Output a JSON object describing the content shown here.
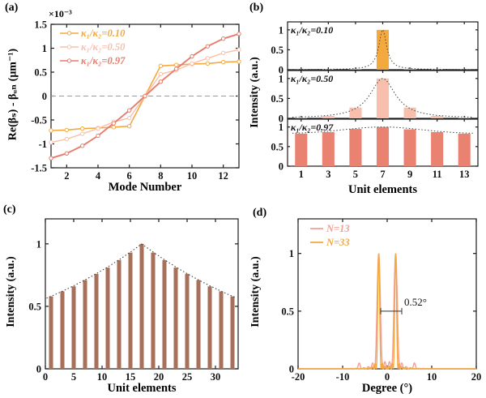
{
  "chart_data": [
    {
      "panel": "(a)",
      "type": "line",
      "xlabel": "Mode Number",
      "ylabel": "Re(βₛ) - βᵤₙ (μm⁻¹)",
      "offset_label": "×10⁻³",
      "xlim": [
        1,
        13
      ],
      "ylim": [
        -1.5,
        1.5
      ],
      "xticks": [
        2,
        4,
        6,
        8,
        10,
        12
      ],
      "yticks": [
        -1.5,
        -1,
        -0.5,
        0,
        0.5,
        1,
        1.5
      ],
      "zero_line": true,
      "legend_position": "top-left",
      "x": [
        1,
        2,
        3,
        4,
        5,
        6,
        7,
        8,
        9,
        10,
        11,
        12,
        13
      ],
      "series": [
        {
          "name": "κ₁/κ₂=0.10",
          "color": "#f4a93e",
          "width": 1.6,
          "values": [
            -0.72,
            -0.71,
            -0.68,
            -0.67,
            -0.65,
            -0.63,
            0,
            0.63,
            0.65,
            0.67,
            0.68,
            0.71,
            0.72
          ]
        },
        {
          "name": "κ₁/κ₂=0.50",
          "color": "#f8c0ac",
          "width": 1.4,
          "values": [
            -0.97,
            -0.9,
            -0.79,
            -0.68,
            -0.54,
            -0.46,
            0,
            0.46,
            0.54,
            0.68,
            0.79,
            0.9,
            0.97
          ]
        },
        {
          "name": "κ₁/κ₂=0.97",
          "color": "#e87c6c",
          "width": 1.9,
          "values": [
            -1.3,
            -1.2,
            -1.04,
            -0.83,
            -0.57,
            -0.3,
            0,
            0.3,
            0.57,
            0.83,
            1.04,
            1.2,
            1.3
          ]
        }
      ]
    },
    {
      "panel": "(b)",
      "type": "bar-stack",
      "xlabel": "Unit elements",
      "ylabel": "Intensity (a.u.)",
      "categories": [
        1,
        3,
        5,
        7,
        9,
        11,
        13
      ],
      "xticks": [
        1,
        3,
        5,
        7,
        9,
        11,
        13
      ],
      "yticks": [
        0,
        0.5,
        1
      ],
      "xlim": [
        0,
        14
      ],
      "ylim": [
        0,
        1.2
      ],
      "bar_width_units": 0.9,
      "subplots": [
        {
          "label": "κ₁/κ₂=0.10",
          "color": "#f4a93e",
          "values": [
            0.005,
            0.01,
            0.02,
            1.0,
            0.02,
            0.01,
            0.005
          ],
          "envelope": {
            "type": "lorentzian",
            "center": 7,
            "gamma": 0.35,
            "base": 0.004,
            "amp": 1
          }
        },
        {
          "label": "κ₁/κ₂=0.50",
          "color": "#f8c0ac",
          "values": [
            0.02,
            0.06,
            0.27,
            1.0,
            0.27,
            0.06,
            0.02
          ],
          "envelope": {
            "type": "lorentzian",
            "center": 7,
            "gamma": 1.15,
            "base": 0,
            "amp": 1
          }
        },
        {
          "label": "κ₁/κ₂=0.97",
          "color": "#ea8272",
          "values": [
            0.83,
            0.87,
            0.95,
            1.0,
            0.94,
            0.87,
            0.83
          ],
          "envelope": {
            "type": "gaussian",
            "center": 7,
            "sigma": 4,
            "base": 0.83,
            "amp": 0.17
          }
        }
      ]
    },
    {
      "panel": "(c)",
      "type": "bar",
      "xlabel": "Unit elements",
      "ylabel": "Intensity (a.u.)",
      "categories": [
        1,
        3,
        5,
        7,
        9,
        11,
        13,
        15,
        17,
        19,
        21,
        23,
        25,
        27,
        29,
        31,
        33
      ],
      "values": [
        0.58,
        0.62,
        0.66,
        0.71,
        0.76,
        0.81,
        0.87,
        0.93,
        1.0,
        0.93,
        0.87,
        0.81,
        0.76,
        0.71,
        0.66,
        0.62,
        0.58
      ],
      "color": "#a7705a",
      "xlim": [
        0,
        34
      ],
      "ylim": [
        0,
        1.2
      ],
      "xticks": [
        0,
        5,
        10,
        15,
        20,
        25,
        30
      ],
      "yticks": [
        0,
        0.5,
        1
      ],
      "bar_width_units": 0.72,
      "envelope": {
        "type": "exponential",
        "center": 17,
        "rate": 0.034,
        "amp": 1
      }
    },
    {
      "panel": "(d)",
      "type": "line-peaks",
      "xlabel": "Degree (°)",
      "ylabel": "Intensity (a.u.)",
      "xlim": [
        -20,
        20
      ],
      "ylim": [
        0,
        1.3
      ],
      "xticks": [
        -20,
        -10,
        0,
        10,
        20
      ],
      "yticks": [
        0,
        0.5,
        1
      ],
      "annotation": {
        "text": "0.52°",
        "y_level": 0.5
      },
      "series": [
        {
          "name": "N=13",
          "color": "#f2a097",
          "peak_centers": [
            -1.9,
            1.9
          ],
          "peak_height": 1.0,
          "first_null_width": 0.95,
          "grating_lobes": [
            -6.3,
            6.1
          ],
          "grating_lobe_height": 0.045
        },
        {
          "name": "N=33",
          "color": "#f4a93e",
          "peak_centers": [
            -1.9,
            1.9
          ],
          "peak_height": 1.0,
          "first_null_width": 0.55
        }
      ]
    }
  ]
}
